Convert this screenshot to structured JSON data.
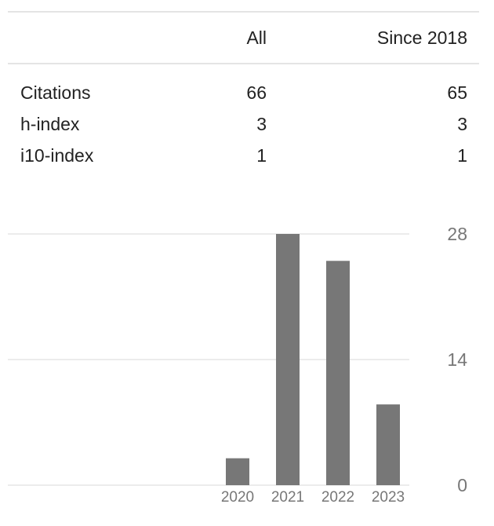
{
  "stats_table": {
    "headers": [
      "",
      "All",
      "Since 2018"
    ],
    "rows": [
      {
        "label": "Citations",
        "all": "66",
        "since": "65"
      },
      {
        "label": "h-index",
        "all": "3",
        "since": "3"
      },
      {
        "label": "i10-index",
        "all": "1",
        "since": "1"
      }
    ]
  },
  "chart_data": {
    "type": "bar",
    "title": "",
    "xlabel": "",
    "ylabel": "",
    "categories": [
      "2020",
      "2021",
      "2022",
      "2023"
    ],
    "values": [
      3,
      28,
      25,
      9
    ],
    "ylim": [
      0,
      28
    ],
    "yticks": [
      0,
      14,
      28
    ],
    "ytick_side": "right",
    "grid": true,
    "bar_color": "#777777",
    "grid_color": "#e6e6e6",
    "tick_label_color": "#777777"
  }
}
